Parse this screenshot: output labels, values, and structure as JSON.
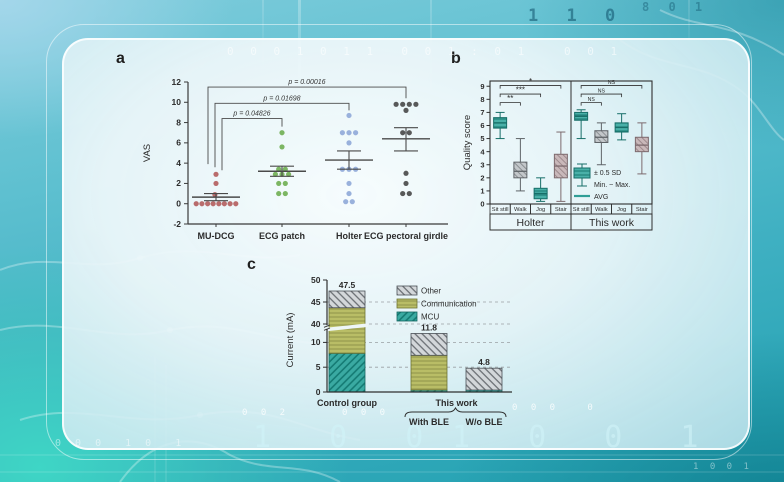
{
  "panels": {
    "a": {
      "letter": "a"
    },
    "b": {
      "letter": "b"
    },
    "c": {
      "letter": "c"
    }
  },
  "palette": {
    "teal_box": "#49b0a8",
    "olive_bar": "#b9bd66",
    "gray_hatch": "#d3d7da",
    "scatter_red": "#b25c5c",
    "scatter_green": "#6fae52",
    "scatter_blue": "#8fa8d8",
    "scatter_dark": "#474747",
    "card_bg": "#eef6f8"
  },
  "background": {
    "digits_top_right_1": "1 1 0",
    "digits_top_right_2": "8 0 1",
    "digits_card_top": "0 0 0 1 0 1 1  0 0 1 : 0 1   0 0 1",
    "digits_bottom_left_large": "1 0 0",
    "digits_bottom_right_large": "1 0 0 1",
    "digits_small_1": "0 0 2",
    "digits_small_2": "0 0 0",
    "digits_small_3": "0 0 0   0",
    "digits_left_small": "0 0 0  1 0  1",
    "digits_bottom_right_small": "1 0 0 1"
  },
  "chart_data": [
    {
      "id": "a",
      "type": "scatter",
      "title": "",
      "ylabel": "VAS",
      "ylim": [
        -2,
        12
      ],
      "yticks": [
        -2,
        0,
        2,
        4,
        6,
        8,
        10,
        12
      ],
      "categories": [
        "MU-DCG",
        "ECG patch",
        "Holter",
        "ECG pectoral girdle"
      ],
      "colors": [
        "#b25c5c",
        "#6fae52",
        "#8fa8d8",
        "#474747"
      ],
      "series": [
        {
          "category": "MU-DCG",
          "mean": 0.65,
          "sd_low": 0.3,
          "sd_high": 1.0,
          "points": [
            [
              -0.9,
              0
            ],
            [
              -0.64,
              0
            ],
            [
              -0.38,
              0
            ],
            [
              -0.13,
              0
            ],
            [
              0.13,
              0
            ],
            [
              0.38,
              0
            ],
            [
              0.64,
              0
            ],
            [
              0.9,
              0
            ],
            [
              -0.05,
              0.9
            ],
            [
              0,
              2
            ],
            [
              0,
              2.9
            ]
          ]
        },
        {
          "category": "ECG patch",
          "mean": 3.2,
          "sd_low": 2.7,
          "sd_high": 3.7,
          "points": [
            [
              0,
              7
            ],
            [
              0,
              5.6
            ],
            [
              -0.15,
              3.4
            ],
            [
              0.15,
              3.4
            ],
            [
              -0.3,
              2.9
            ],
            [
              0,
              2.9
            ],
            [
              0.3,
              2.9
            ],
            [
              -0.15,
              2
            ],
            [
              0.15,
              2
            ],
            [
              -0.15,
              1
            ],
            [
              0.15,
              1
            ]
          ]
        },
        {
          "category": "Holter",
          "mean": 4.3,
          "sd_low": 3.4,
          "sd_high": 5.2,
          "points": [
            [
              0,
              8.7
            ],
            [
              -0.3,
              7
            ],
            [
              0,
              7
            ],
            [
              0.3,
              7
            ],
            [
              0,
              6
            ],
            [
              -0.3,
              3.4
            ],
            [
              0,
              3.4
            ],
            [
              0.3,
              3.4
            ],
            [
              0,
              2
            ],
            [
              0,
              1
            ],
            [
              -0.15,
              0.2
            ],
            [
              0.15,
              0.2
            ]
          ]
        },
        {
          "category": "ECG pectoral girdle",
          "mean": 6.4,
          "sd_low": 5.2,
          "sd_high": 7.5,
          "points": [
            [
              -0.45,
              9.8
            ],
            [
              -0.15,
              9.8
            ],
            [
              0.15,
              9.8
            ],
            [
              0.45,
              9.8
            ],
            [
              0,
              9.2
            ],
            [
              -0.15,
              7
            ],
            [
              0.15,
              7
            ],
            [
              0,
              3
            ],
            [
              0,
              2
            ],
            [
              -0.15,
              1
            ],
            [
              0.15,
              1
            ]
          ]
        }
      ],
      "comparisons": [
        {
          "from": 0,
          "to": 1,
          "p_label": "p = 0.04826",
          "bar_y": 8.4,
          "leg_from_y": 3.3,
          "leg_to_y": 7.6
        },
        {
          "from": 0,
          "to": 2,
          "p_label": "p = 0.01698",
          "bar_y": 9.9,
          "leg_from_y": 3.6,
          "leg_to_y": 9.2
        },
        {
          "from": 0,
          "to": 3,
          "p_label": "p = 0.00016",
          "bar_y": 11.5,
          "leg_from_y": 3.9,
          "leg_to_y": 10.4
        }
      ]
    },
    {
      "id": "b",
      "type": "boxplot",
      "title": "",
      "ylabel": "Quality score",
      "ylim": [
        0,
        9.4
      ],
      "yticks": [
        0,
        1,
        2,
        3,
        4,
        5,
        6,
        7,
        8,
        9
      ],
      "conditions": [
        "Sit still",
        "Walk",
        "Jog",
        "Stair"
      ],
      "groups": [
        {
          "label": "Holter",
          "boxes": [
            {
              "condition": "Sit still",
              "min": 5.0,
              "max": 7.0,
              "box_low": 5.8,
              "box_high": 6.6,
              "avg": 6.2,
              "style": "teal"
            },
            {
              "condition": "Walk",
              "min": 1.0,
              "max": 5.0,
              "box_low": 2.0,
              "box_high": 3.2,
              "avg": 2.5,
              "style": "gray"
            },
            {
              "condition": "Jog",
              "min": 0.2,
              "max": 2.0,
              "box_low": 0.4,
              "box_high": 1.2,
              "avg": 0.8,
              "style": "teal"
            },
            {
              "condition": "Stair",
              "min": 0.2,
              "max": 5.5,
              "box_low": 2.0,
              "box_high": 3.8,
              "avg": 2.9,
              "style": "mauve"
            }
          ],
          "significance": [
            {
              "from": 0,
              "to": 1,
              "label": "**",
              "bar_y": 7.75
            },
            {
              "from": 0,
              "to": 2,
              "label": "***",
              "bar_y": 8.4
            },
            {
              "from": 0,
              "to": 3,
              "label": "*",
              "bar_y": 9.05
            }
          ]
        },
        {
          "label": "This work",
          "boxes": [
            {
              "condition": "Sit still",
              "min": 5.0,
              "max": 7.2,
              "box_low": 6.4,
              "box_high": 7.0,
              "avg": 6.7,
              "style": "teal"
            },
            {
              "condition": "Walk",
              "min": 3.0,
              "max": 6.2,
              "box_low": 4.7,
              "box_high": 5.6,
              "avg": 5.1,
              "style": "gray"
            },
            {
              "condition": "Jog",
              "min": 4.9,
              "max": 6.9,
              "box_low": 5.5,
              "box_high": 6.2,
              "avg": 5.85,
              "style": "teal"
            },
            {
              "condition": "Stair",
              "min": 2.3,
              "max": 6.2,
              "box_low": 4.0,
              "box_high": 5.1,
              "avg": 4.5,
              "style": "mauve"
            }
          ],
          "significance": [
            {
              "from": 0,
              "to": 1,
              "label": "NS",
              "bar_y": 7.75
            },
            {
              "from": 0,
              "to": 2,
              "label": "NS",
              "bar_y": 8.4
            },
            {
              "from": 0,
              "to": 3,
              "label": "NS",
              "bar_y": 9.05
            }
          ]
        }
      ],
      "legend": {
        "box_label": "± 0.5 SD",
        "whisker_label": "Min. ~ Max.",
        "avg_label": "AVG"
      }
    },
    {
      "id": "c",
      "type": "stacked_bar",
      "title": "",
      "ylabel": "Current (mA)",
      "yticks_lower": [
        0,
        5,
        10
      ],
      "yticks_upper": [
        40,
        45,
        50
      ],
      "axis_break": {
        "lower_max": 12.5,
        "upper_min": 40,
        "upper_max": 50
      },
      "segments_order": [
        "MCU",
        "Communication",
        "Other"
      ],
      "legend": [
        "Other",
        "Communication",
        "MCU"
      ],
      "bars": [
        {
          "label": "Control group",
          "total": 47.5,
          "total_label": "47.5",
          "segments": {
            "MCU": 7.8,
            "Communication": 35.9,
            "Other": 3.8
          }
        },
        {
          "label": "With BLE",
          "total": 11.8,
          "total_label": "11.8",
          "segments": {
            "MCU": 0.4,
            "Communication": 7.0,
            "Other": 4.4
          }
        },
        {
          "label": "W/o BLE",
          "total": 4.8,
          "total_label": "4.8",
          "segments": {
            "MCU": 0.4,
            "Communication": 0,
            "Other": 4.4
          }
        }
      ],
      "group_labels": [
        {
          "label": "Control group"
        },
        {
          "label": "This work"
        }
      ],
      "sub_labels": [
        "With BLE",
        "W/o BLE"
      ]
    }
  ]
}
